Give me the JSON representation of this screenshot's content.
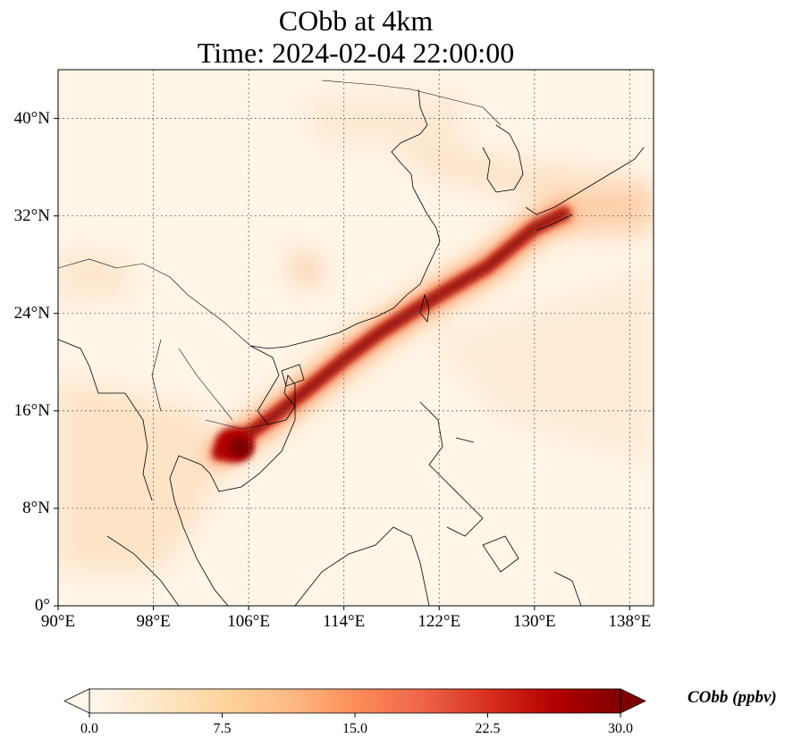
{
  "title": "CObb at 4km",
  "subtitle": "Time: 2024-02-04 22:00:00",
  "map": {
    "lon_range": [
      90,
      140
    ],
    "lat_range": [
      0,
      44
    ],
    "lon_ticks": [
      "90°E",
      "98°E",
      "106°E",
      "114°E",
      "122°E",
      "130°E",
      "138°E"
    ],
    "lat_ticks": [
      "0°",
      "8°N",
      "16°N",
      "24°N",
      "32°N",
      "40°N"
    ],
    "gridlines": true,
    "colormap": "OrRd",
    "plume": {
      "path_lonlat": [
        [
          103.5,
          12.5
        ],
        [
          105.5,
          13.8
        ],
        [
          108,
          15.5
        ],
        [
          111,
          17.8
        ],
        [
          114,
          20.2
        ],
        [
          117,
          22.4
        ],
        [
          120,
          24.3
        ],
        [
          122.5,
          25.8
        ],
        [
          126,
          27.8
        ],
        [
          130,
          31.0
        ],
        [
          132.5,
          32.2
        ]
      ],
      "peak_ppbv": 30
    }
  },
  "colorbar": {
    "label": "CObb (ppbv)",
    "ticks": [
      "0.0",
      "7.5",
      "15.0",
      "22.5",
      "30.0"
    ],
    "min": 0,
    "max": 30,
    "extend": "both",
    "colors": [
      "#fff7ec",
      "#fee8c8",
      "#fdd49e",
      "#fdbb84",
      "#fc8d59",
      "#ef6548",
      "#d7301f",
      "#b30000",
      "#7f0000"
    ]
  }
}
